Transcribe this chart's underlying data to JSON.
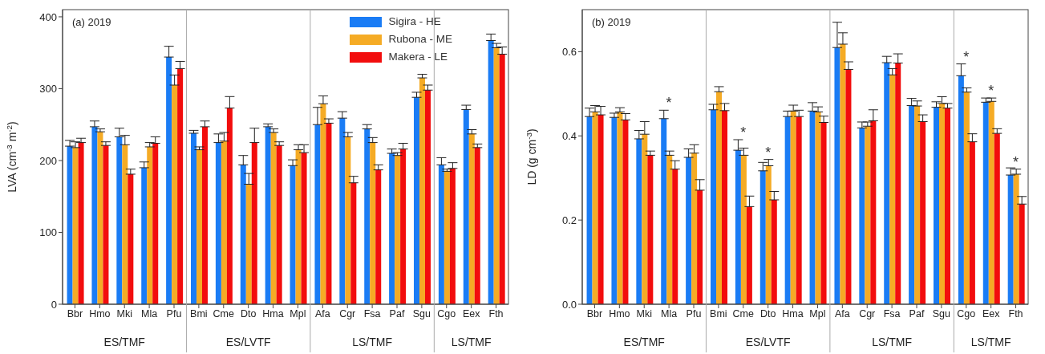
{
  "chart_data": [
    {
      "type": "bar",
      "title": "(a)  2019",
      "ylabel": "LVA (cm$^{-3}$ m$^{-2}$)",
      "categories": [
        "Bbr",
        "Hmo",
        "Mki",
        "Mla",
        "Pfu",
        "Bmi",
        "Cme",
        "Dto",
        "Hma",
        "Mpl",
        "Afa",
        "Cgr",
        "Fsa",
        "Paf",
        "Sgu",
        "Cgo",
        "Eex",
        "Fth"
      ],
      "series": [
        {
          "name": "Sigira - HE",
          "color": "#1a7cf5",
          "values": [
            220,
            247,
            233,
            190,
            344,
            238,
            225,
            194,
            247,
            193,
            250,
            259,
            244,
            210,
            288,
            194,
            271,
            367
          ],
          "errors": [
            8,
            8,
            12,
            8,
            15,
            4,
            12,
            13,
            4,
            8,
            24,
            9,
            6,
            6,
            7,
            10,
            6,
            9
          ]
        },
        {
          "name": "Rubona - ME",
          "color": "#f5ab25",
          "values": [
            218,
            240,
            222,
            219,
            305,
            215,
            227,
            167,
            239,
            215,
            279,
            233,
            225,
            207,
            315,
            185,
            237,
            357
          ],
          "errors": [
            8,
            4,
            13,
            6,
            14,
            4,
            12,
            15,
            5,
            7,
            11,
            6,
            7,
            4,
            5,
            3,
            6,
            6
          ]
        },
        {
          "name": "Makera - LE",
          "color": "#f20d0d",
          "values": [
            225,
            221,
            181,
            224,
            328,
            247,
            273,
            225,
            221,
            211,
            252,
            169,
            187,
            216,
            298,
            189,
            218,
            348
          ],
          "errors": [
            6,
            5,
            7,
            9,
            10,
            8,
            16,
            20,
            5,
            11,
            6,
            9,
            7,
            8,
            7,
            8,
            5,
            10
          ]
        }
      ],
      "ylim": [
        0,
        410
      ],
      "yticks": [
        0,
        100,
        200,
        300,
        400
      ],
      "grid": false,
      "legend": "top right",
      "annotations": [
        "ES/TMF",
        "ES/LVTF",
        "LS/TMF",
        "LS/TMF"
      ]
    },
    {
      "type": "bar",
      "title": "(b)  2019",
      "ylabel": "LD (g cm$^{-3}$)",
      "categories": [
        "Bbr",
        "Hmo",
        "Mki",
        "Mla",
        "Pfu",
        "Bmi",
        "Cme",
        "Dto",
        "Hma",
        "Mpl",
        "Afa",
        "Cgr",
        "Fsa",
        "Paf",
        "Sgu",
        "Cgo",
        "Eex",
        "Fth"
      ],
      "series": [
        {
          "color": "#1a7cf5",
          "values": [
            0.446,
            0.444,
            0.393,
            0.441,
            0.349,
            0.462,
            0.366,
            0.317,
            0.446,
            0.459,
            0.61,
            0.419,
            0.574,
            0.472,
            0.468,
            0.543,
            0.48,
            0.307
          ],
          "errors": [
            0.02,
            0.01,
            0.02,
            0.02,
            0.02,
            0.013,
            0.025,
            0.02,
            0.013,
            0.02,
            0.06,
            0.014,
            0.015,
            0.017,
            0.013,
            0.028,
            0.01,
            0.017
          ]
        },
        {
          "color": "#f5ab25",
          "values": [
            0.457,
            0.457,
            0.404,
            0.354,
            0.359,
            0.505,
            0.354,
            0.329,
            0.459,
            0.457,
            0.618,
            0.423,
            0.545,
            0.471,
            0.477,
            0.504,
            0.482,
            0.309
          ],
          "errors": [
            0.015,
            0.01,
            0.03,
            0.01,
            0.02,
            0.012,
            0.017,
            0.015,
            0.014,
            0.012,
            0.027,
            0.01,
            0.015,
            0.012,
            0.016,
            0.01,
            0.008,
            0.012
          ]
        },
        {
          "color": "#f20d0d",
          "values": [
            0.45,
            0.438,
            0.354,
            0.321,
            0.271,
            0.46,
            0.232,
            0.248,
            0.446,
            0.432,
            0.558,
            0.436,
            0.573,
            0.434,
            0.466,
            0.386,
            0.406,
            0.238
          ],
          "errors": [
            0.02,
            0.015,
            0.01,
            0.02,
            0.025,
            0.017,
            0.025,
            0.02,
            0.015,
            0.015,
            0.018,
            0.026,
            0.022,
            0.016,
            0.011,
            0.019,
            0.011,
            0.018
          ]
        }
      ],
      "ylim": [
        0,
        0.7
      ],
      "yticks": [
        {
          "value": 0,
          "label": "0.0"
        },
        {
          "value": 0.2,
          "label": "0.2"
        },
        {
          "value": 0.4,
          "label": "0.4"
        },
        {
          "value": 0.6,
          "label": "0.6"
        }
      ],
      "grid": false,
      "legend": false,
      "annotations": [
        "ES/TMF",
        "ES/LVTF",
        "LS/TMF",
        "LS/TMF",
        {
          "text": "*",
          "x": "Mla",
          "y": 0.441
        },
        {
          "text": "*",
          "x": "Cme",
          "y": 0.366
        },
        {
          "text": "*",
          "x": "Dto",
          "y": 0.329
        },
        {
          "text": "*",
          "x": "Cgo",
          "y": 0.543
        },
        {
          "text": "*",
          "x": "Eex",
          "y": 0.482
        },
        {
          "text": "*",
          "x": "Fth",
          "y": 0.309
        }
      ]
    }
  ]
}
